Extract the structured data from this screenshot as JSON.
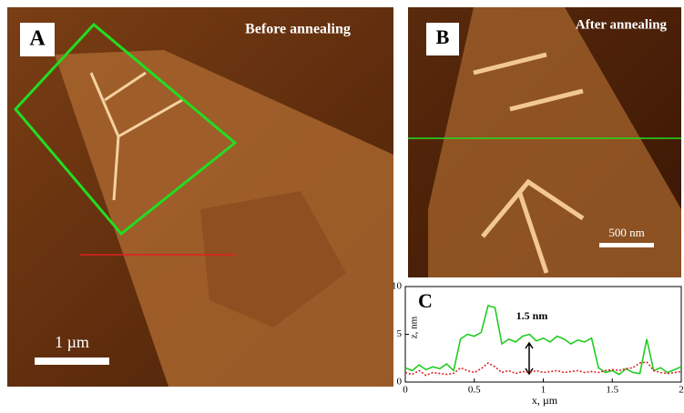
{
  "figure": {
    "panel_a": {
      "label": "A",
      "caption": "Before annealing",
      "scale_bar": "1 µm"
    },
    "panel_b": {
      "label": "B",
      "caption": "After annealing",
      "scale_bar": "500 nm"
    }
  },
  "chart_data": {
    "type": "line",
    "panel_label": "C",
    "annotation": "1.5 nm",
    "x_label": "x, µm",
    "y_label": "z, nm",
    "x": [
      0,
      0.05,
      0.1,
      0.15,
      0.2,
      0.25,
      0.3,
      0.35,
      0.4,
      0.45,
      0.5,
      0.55,
      0.6,
      0.65,
      0.7,
      0.75,
      0.8,
      0.85,
      0.9,
      0.95,
      1,
      1.05,
      1.1,
      1.15,
      1.2,
      1.25,
      1.3,
      1.35,
      1.4,
      1.45,
      1.5,
      1.55,
      1.6,
      1.65,
      1.7,
      1.75,
      1.8,
      1.85,
      1.9,
      1.95,
      2
    ],
    "series": [
      {
        "color": "#22cc22",
        "style": "solid",
        "values": [
          1.5,
          1.2,
          1.8,
          1.3,
          1.6,
          1.4,
          1.9,
          1.2,
          4.5,
          5.0,
          4.8,
          5.2,
          8.0,
          7.8,
          4.0,
          4.5,
          4.2,
          4.8,
          5.0,
          4.3,
          4.6,
          4.2,
          4.8,
          4.5,
          4.0,
          4.4,
          4.2,
          4.6,
          1.5,
          1.0,
          1.2,
          0.8,
          1.4,
          1.0,
          0.9,
          4.5,
          1.2,
          1.5,
          1.0,
          1.3,
          1.6
        ]
      },
      {
        "color": "#dd2222",
        "style": "dotted",
        "values": [
          1.0,
          0.8,
          1.2,
          0.7,
          1.0,
          0.9,
          0.8,
          0.9,
          1.5,
          1.2,
          1.0,
          1.4,
          2.0,
          1.6,
          1.0,
          1.2,
          0.9,
          1.1,
          1.0,
          1.2,
          1.0,
          1.1,
          1.2,
          1.0,
          1.1,
          1.2,
          1.0,
          1.1,
          1.0,
          1.2,
          1.3,
          1.2,
          1.4,
          1.5,
          2.0,
          2.1,
          1.2,
          1.0,
          0.9,
          1.0,
          1.1
        ]
      }
    ],
    "xlim": [
      0,
      2
    ],
    "ylim": [
      0,
      10
    ],
    "xticks": [
      0,
      0.5,
      1,
      1.5,
      2
    ],
    "yticks": [
      0,
      5,
      10
    ]
  }
}
